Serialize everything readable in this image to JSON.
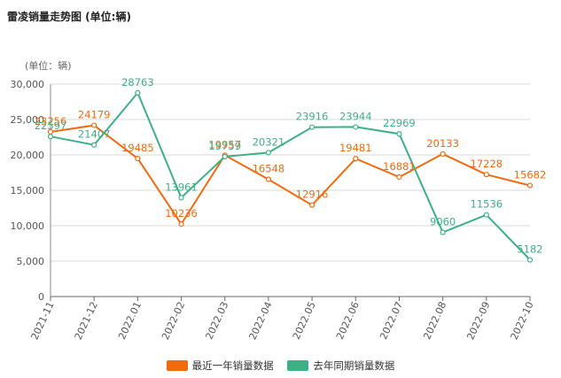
{
  "chart_data": {
    "type": "line",
    "title": "雷凌销量走势图 (单位:辆)",
    "unit_label": "(单位：辆)",
    "categories": [
      "2021-11",
      "2021-12",
      "2022.01",
      "2022-02",
      "2022.03",
      "2022-04",
      "2022.05",
      "2022.06",
      "2022.07",
      "2022.08",
      "2022-09",
      "2022-10"
    ],
    "ylim": [
      0,
      30000
    ],
    "yticks": [
      0,
      5000,
      10000,
      15000,
      20000,
      25000,
      30000
    ],
    "ytick_labels": [
      "0",
      "5,000",
      "10,000",
      "15,000",
      "20,000",
      "25,000",
      "30,000"
    ],
    "grid": true,
    "legend_position": "bottom",
    "series": [
      {
        "name": "最近一年销量数据",
        "color": "#f26a0e",
        "values": [
          23256,
          24179,
          19485,
          10236,
          19957,
          16548,
          12916,
          19481,
          16881,
          20133,
          17228,
          15682
        ]
      },
      {
        "name": "去年同期销量数据",
        "color": "#3db185",
        "values": [
          22597,
          21407,
          28763,
          13961,
          19759,
          20321,
          23916,
          23944,
          22969,
          9060,
          11536,
          5182
        ]
      }
    ]
  }
}
